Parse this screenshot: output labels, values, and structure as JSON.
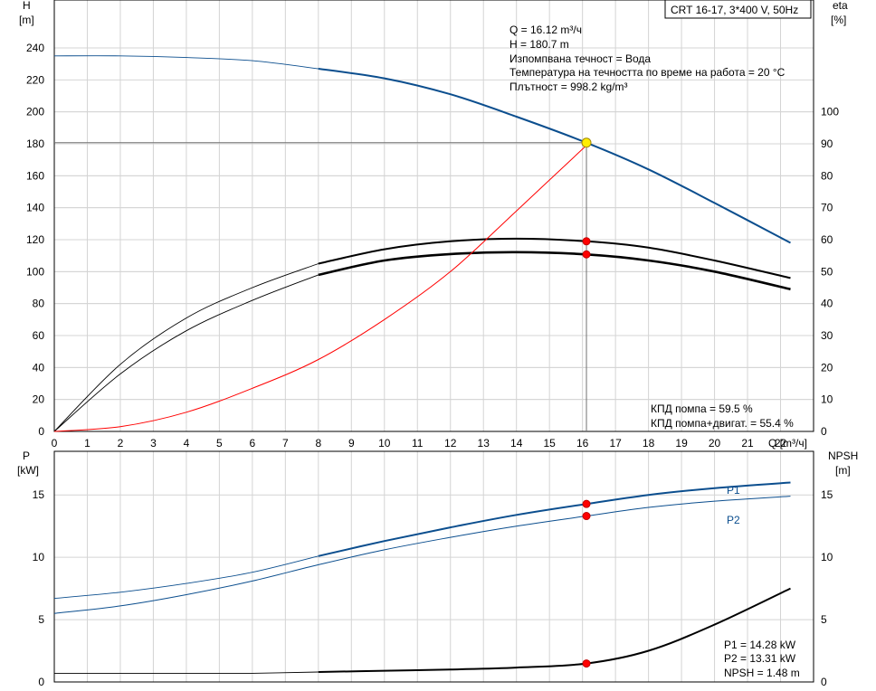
{
  "title_box": "CRT 16-17, 3*400 V, 50Hz",
  "colors": {
    "blue": "#0b4e8e",
    "black": "#000000",
    "red": "#ff0000",
    "grid": "#d4d4d4",
    "operating_point": "#ffee00"
  },
  "chart_data": [
    {
      "type": "line",
      "y_left_label": [
        "H",
        "[m]"
      ],
      "y_right_label": [
        "eta",
        "[%]"
      ],
      "x_label": "Q [m³/ч]",
      "xlim": [
        0,
        23
      ],
      "x_ticks": [
        0,
        1,
        2,
        3,
        4,
        5,
        6,
        7,
        8,
        9,
        10,
        11,
        12,
        13,
        14,
        15,
        16,
        17,
        18,
        19,
        20,
        21,
        22
      ],
      "y_left_ticks": [
        0,
        20,
        40,
        60,
        80,
        100,
        120,
        140,
        160,
        180,
        200,
        220,
        240
      ],
      "ylim_left": [
        0,
        270
      ],
      "y_right_ticks": [
        0,
        10,
        20,
        30,
        40,
        50,
        60,
        70,
        80,
        90,
        100
      ],
      "ylim_right": [
        0,
        135
      ],
      "grid": true,
      "info_lines": [
        "Q = 16.12 m³/ч",
        "H = 180.7 m",
        "Изпомпвана течност = Вода",
        "Температура на течността по време на работа = 20 °C",
        "Плътност = 998.2 kg/m³"
      ],
      "efficiency_lines": [
        "КПД помпа = 59.5 %",
        "КПД помпа+двигат. = 55.4 %"
      ],
      "operating_point": {
        "q": 16.12,
        "h": 180.7
      },
      "series": [
        {
          "id": "H",
          "axis": "left",
          "color": "#0b4e8e",
          "solid_from": 8,
          "x": [
            0,
            2,
            4,
            6,
            8,
            10,
            12,
            14,
            16.12,
            18,
            20,
            22.3
          ],
          "y": [
            235,
            235,
            234,
            232,
            227,
            221,
            211,
            197,
            180.7,
            164,
            143,
            118
          ]
        },
        {
          "id": "eta_pump",
          "axis": "right",
          "color": "#000000",
          "solid_from": 8,
          "x": [
            0,
            2,
            4,
            6,
            8,
            10,
            12,
            14,
            16.12,
            18,
            20,
            22.3
          ],
          "y": [
            0,
            21,
            35.5,
            45,
            52.5,
            57,
            59.5,
            60.3,
            59.5,
            57.5,
            53.5,
            48
          ]
        },
        {
          "id": "eta_total",
          "axis": "right",
          "color": "#000000",
          "solid_from": 8,
          "bold": true,
          "x": [
            0,
            2,
            4,
            6,
            8,
            10,
            12,
            14,
            16.12,
            18,
            20,
            22.3
          ],
          "y": [
            0,
            18,
            31.5,
            41,
            49,
            53.5,
            55.5,
            56.1,
            55.4,
            53.5,
            50,
            44.5
          ]
        },
        {
          "id": "system",
          "axis": "left",
          "color": "#ff0000",
          "thin": true,
          "x": [
            0,
            2,
            4,
            6,
            8,
            10,
            12,
            14,
            16.12
          ],
          "y": [
            0,
            3,
            12,
            27,
            45,
            70,
            100,
            138,
            179
          ]
        }
      ],
      "markers": [
        {
          "x": 16.12,
          "y": 180.7,
          "axis": "left",
          "color": "#ffee00"
        },
        {
          "x": 16.12,
          "y": 59.5,
          "axis": "right",
          "color": "#ff0000"
        },
        {
          "x": 16.12,
          "y": 55.4,
          "axis": "right",
          "color": "#ff0000"
        }
      ]
    },
    {
      "type": "line",
      "y_left_label": [
        "P",
        "[kW]"
      ],
      "y_right_label": [
        "NPSH",
        "[m]"
      ],
      "xlim": [
        0,
        23
      ],
      "y_left_ticks": [
        0,
        5,
        10,
        15
      ],
      "ylim_left": [
        0,
        18.5
      ],
      "y_right_ticks": [
        0,
        5,
        10,
        15
      ],
      "ylim_right": [
        0,
        18.5
      ],
      "grid": true,
      "series_labels": [
        "P1",
        "P2"
      ],
      "value_lines": [
        "P1 = 14.28 kW",
        "P2 = 13.31 kW",
        "NPSH = 1.48 m"
      ],
      "series": [
        {
          "id": "P1",
          "axis": "left",
          "color": "#0b4e8e",
          "solid_from": 8,
          "x": [
            0,
            2,
            4,
            6,
            8,
            10,
            12,
            14,
            16.12,
            18,
            20,
            22.3
          ],
          "y": [
            6.7,
            7.2,
            7.9,
            8.8,
            10.1,
            11.3,
            12.4,
            13.4,
            14.28,
            15,
            15.55,
            16.0
          ]
        },
        {
          "id": "P2",
          "axis": "left",
          "color": "#0b4e8e",
          "thin": true,
          "x": [
            0,
            2,
            4,
            6,
            8,
            10,
            12,
            14,
            16.12,
            18,
            20,
            22.3
          ],
          "y": [
            5.5,
            6.1,
            7.0,
            8.1,
            9.4,
            10.6,
            11.6,
            12.5,
            13.31,
            14.0,
            14.5,
            14.9
          ]
        },
        {
          "id": "NPSH",
          "axis": "right",
          "color": "#000000",
          "solid_from": 8,
          "x": [
            0,
            2,
            4,
            6,
            8,
            10,
            12,
            14,
            16.12,
            18,
            20,
            22.3
          ],
          "y": [
            0.7,
            0.7,
            0.7,
            0.7,
            0.8,
            0.9,
            1.0,
            1.15,
            1.48,
            2.5,
            4.6,
            7.5
          ]
        }
      ],
      "markers": [
        {
          "x": 16.12,
          "y": 14.28,
          "axis": "left",
          "color": "#ff0000"
        },
        {
          "x": 16.12,
          "y": 13.31,
          "axis": "left",
          "color": "#ff0000"
        },
        {
          "x": 16.12,
          "y": 1.48,
          "axis": "right",
          "color": "#ff0000"
        }
      ]
    }
  ]
}
